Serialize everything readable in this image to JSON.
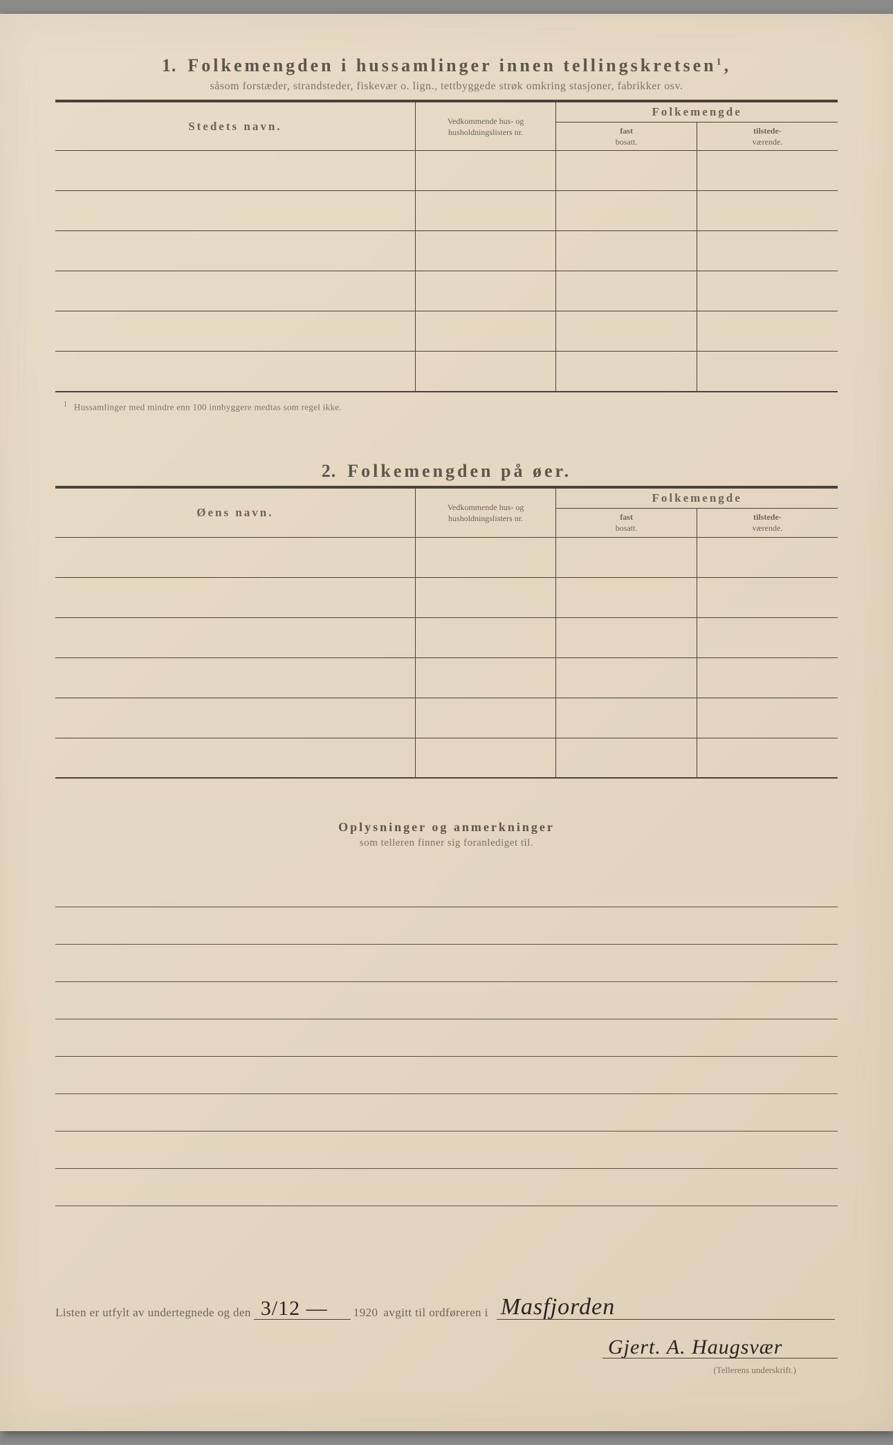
{
  "section1": {
    "number": "1.",
    "title": "Folkemengden i hussamlinger innen tellingskretsen",
    "title_sup": "1",
    "title_punct": ",",
    "subtitle": "såsom forstæder, strandsteder, fiskevær o. lign., tettbyggede strøk omkring stasjoner, fabrikker osv.",
    "col_name": "Stedets navn.",
    "col_ref": "Vedkommende hus- og husholdningslisters nr.",
    "col_pop": "Folkemengde",
    "col_fast_a": "fast",
    "col_fast_b": "bosatt.",
    "col_til_a": "tilstede-",
    "col_til_b": "værende.",
    "footnote_num": "1",
    "footnote": "Hussamlinger med mindre enn 100 innbyggere medtas som regel ikke."
  },
  "section2": {
    "number": "2.",
    "title": "Folkemengden på øer.",
    "col_name": "Øens navn.",
    "col_ref": "Vedkommende hus- og husholdningslisters nr.",
    "col_pop": "Folkemengde",
    "col_fast_a": "fast",
    "col_fast_b": "bosatt.",
    "col_til_a": "tilstede-",
    "col_til_b": "værende."
  },
  "section3": {
    "title": "Oplysninger og anmerkninger",
    "subtitle": "som telleren finner sig foranlediget til."
  },
  "signature": {
    "prefix": "Listen er utfylt av undertegnede og den",
    "date_hand": "3/12 —",
    "year": "1920",
    "mid": "avgitt til ordføreren i",
    "place_hand": "Masfjorden",
    "name_hand": "Gjert. A. Haugsvær",
    "caption": "(Tellerens underskrift.)"
  },
  "style": {
    "rows_table1": 6,
    "rows_table2": 6,
    "notes_lines": 9,
    "paper_bg": "#e5d8c2",
    "ink": "#4a4438",
    "text": "#6b6558"
  }
}
